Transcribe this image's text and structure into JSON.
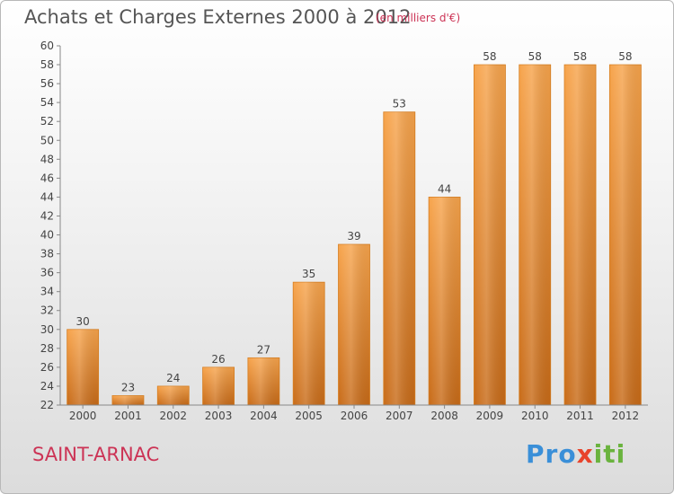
{
  "header": {
    "title": "Achats et Charges Externes 2000 à 2012",
    "subtitle": "(en milliers d'€)"
  },
  "footer": {
    "commune": "SAINT-ARNAC",
    "logo": {
      "parts": [
        "Pro",
        "x",
        "iti"
      ],
      "colors": [
        "#3a8fd8",
        "#e8442c",
        "#f2b01e",
        "#6ab33e"
      ]
    }
  },
  "colors": {
    "bar_top": "#f7a44c",
    "bar_bottom": "#c86b18",
    "subtitle": "#cc3355",
    "grid": "#888888"
  },
  "chart_data": {
    "type": "bar",
    "categories": [
      "2000",
      "2001",
      "2002",
      "2003",
      "2004",
      "2005",
      "2006",
      "2007",
      "2008",
      "2009",
      "2010",
      "2011",
      "2012"
    ],
    "values": [
      30,
      23,
      24,
      26,
      27,
      35,
      39,
      53,
      44,
      58,
      58,
      58,
      58
    ],
    "ylim": [
      22,
      60
    ],
    "ytick_step": 2,
    "grid": false
  }
}
